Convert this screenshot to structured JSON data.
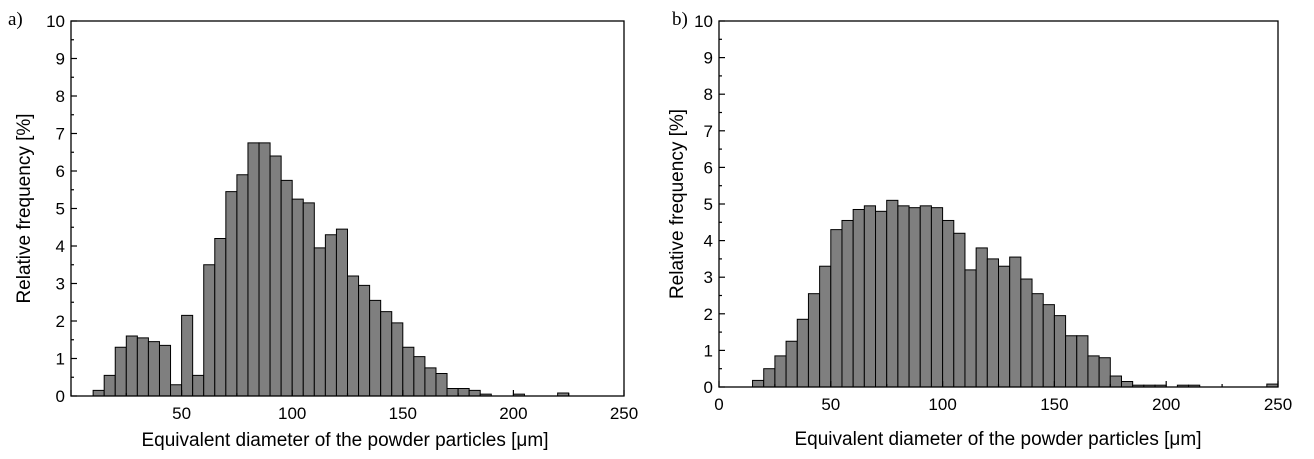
{
  "chart_data": [
    {
      "panel_label": "a)",
      "type": "bar",
      "xlabel": "Equivalent diameter of the powder particles [μm]",
      "ylabel": "Relative frequency [%]",
      "xlim": [
        0,
        250
      ],
      "ylim": [
        0,
        10
      ],
      "xticks": [
        50,
        100,
        150,
        200,
        250
      ],
      "yticks": [
        0,
        1,
        2,
        3,
        4,
        5,
        6,
        7,
        8,
        9,
        10
      ],
      "bin_width": 5,
      "grid": false,
      "bins": [
        {
          "x": 10,
          "y": 0.15
        },
        {
          "x": 15,
          "y": 0.55
        },
        {
          "x": 20,
          "y": 1.3
        },
        {
          "x": 25,
          "y": 1.6
        },
        {
          "x": 30,
          "y": 1.55
        },
        {
          "x": 35,
          "y": 1.45
        },
        {
          "x": 40,
          "y": 1.35
        },
        {
          "x": 45,
          "y": 0.3
        },
        {
          "x": 50,
          "y": 2.15
        },
        {
          "x": 55,
          "y": 0.55
        },
        {
          "x": 60,
          "y": 3.5
        },
        {
          "x": 65,
          "y": 4.2
        },
        {
          "x": 70,
          "y": 5.45
        },
        {
          "x": 75,
          "y": 5.9
        },
        {
          "x": 80,
          "y": 6.75
        },
        {
          "x": 85,
          "y": 6.75
        },
        {
          "x": 90,
          "y": 6.4
        },
        {
          "x": 95,
          "y": 5.75
        },
        {
          "x": 100,
          "y": 5.25
        },
        {
          "x": 105,
          "y": 5.15
        },
        {
          "x": 110,
          "y": 3.95
        },
        {
          "x": 115,
          "y": 4.3
        },
        {
          "x": 120,
          "y": 4.45
        },
        {
          "x": 125,
          "y": 3.2
        },
        {
          "x": 130,
          "y": 2.95
        },
        {
          "x": 135,
          "y": 2.55
        },
        {
          "x": 140,
          "y": 2.25
        },
        {
          "x": 145,
          "y": 1.95
        },
        {
          "x": 150,
          "y": 1.3
        },
        {
          "x": 155,
          "y": 1.05
        },
        {
          "x": 160,
          "y": 0.75
        },
        {
          "x": 165,
          "y": 0.6
        },
        {
          "x": 170,
          "y": 0.2
        },
        {
          "x": 175,
          "y": 0.2
        },
        {
          "x": 180,
          "y": 0.15
        },
        {
          "x": 185,
          "y": 0.05
        },
        {
          "x": 200,
          "y": 0.05
        },
        {
          "x": 220,
          "y": 0.08
        }
      ]
    },
    {
      "panel_label": "b)",
      "type": "bar",
      "xlabel": "Equivalent diameter of the powder particles [μm]",
      "ylabel": "Relative frequency [%]",
      "xlim": [
        0,
        250
      ],
      "ylim": [
        0,
        10
      ],
      "xticks": [
        0,
        50,
        100,
        150,
        200,
        250
      ],
      "yticks": [
        0,
        1,
        2,
        3,
        4,
        5,
        6,
        7,
        8,
        9,
        10
      ],
      "bin_width": 5,
      "grid": false,
      "bins": [
        {
          "x": 15,
          "y": 0.18
        },
        {
          "x": 20,
          "y": 0.5
        },
        {
          "x": 25,
          "y": 0.85
        },
        {
          "x": 30,
          "y": 1.25
        },
        {
          "x": 35,
          "y": 1.85
        },
        {
          "x": 40,
          "y": 2.55
        },
        {
          "x": 45,
          "y": 3.3
        },
        {
          "x": 50,
          "y": 4.3
        },
        {
          "x": 55,
          "y": 4.55
        },
        {
          "x": 60,
          "y": 4.85
        },
        {
          "x": 65,
          "y": 4.95
        },
        {
          "x": 70,
          "y": 4.8
        },
        {
          "x": 75,
          "y": 5.1
        },
        {
          "x": 80,
          "y": 4.95
        },
        {
          "x": 85,
          "y": 4.9
        },
        {
          "x": 90,
          "y": 4.95
        },
        {
          "x": 95,
          "y": 4.9
        },
        {
          "x": 100,
          "y": 4.55
        },
        {
          "x": 105,
          "y": 4.2
        },
        {
          "x": 110,
          "y": 3.2
        },
        {
          "x": 115,
          "y": 3.8
        },
        {
          "x": 120,
          "y": 3.5
        },
        {
          "x": 125,
          "y": 3.3
        },
        {
          "x": 130,
          "y": 3.55
        },
        {
          "x": 135,
          "y": 2.95
        },
        {
          "x": 140,
          "y": 2.55
        },
        {
          "x": 145,
          "y": 2.25
        },
        {
          "x": 150,
          "y": 1.95
        },
        {
          "x": 155,
          "y": 1.4
        },
        {
          "x": 160,
          "y": 1.4
        },
        {
          "x": 165,
          "y": 0.85
        },
        {
          "x": 170,
          "y": 0.8
        },
        {
          "x": 175,
          "y": 0.3
        },
        {
          "x": 180,
          "y": 0.15
        },
        {
          "x": 185,
          "y": 0.05
        },
        {
          "x": 190,
          "y": 0.05
        },
        {
          "x": 195,
          "y": 0.05
        },
        {
          "x": 205,
          "y": 0.05
        },
        {
          "x": 210,
          "y": 0.05
        },
        {
          "x": 245,
          "y": 0.08
        }
      ]
    }
  ]
}
